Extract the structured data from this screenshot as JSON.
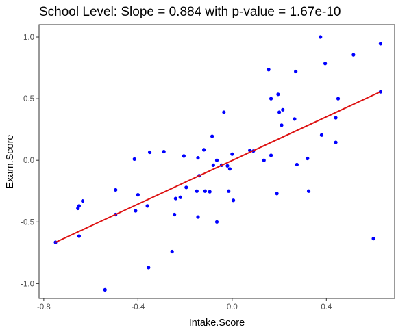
{
  "chart_data": {
    "type": "scatter",
    "title": "School Level:  Slope = 0.884 with p-value = 1.67e-10",
    "xlabel": "Intake.Score",
    "ylabel": "Exam.Score",
    "xlim": [
      -0.82,
      0.69
    ],
    "ylim": [
      -1.12,
      1.1
    ],
    "x_ticks": [
      -0.8,
      -0.4,
      0.0,
      0.4
    ],
    "x_tick_labels": [
      "-0.8",
      "-0.4",
      "0.0",
      "0.4"
    ],
    "y_ticks": [
      -1.0,
      -0.5,
      0.0,
      0.5,
      1.0
    ],
    "y_tick_labels": [
      "-1.0",
      "-0.5",
      "0.0",
      "0.5",
      "1.0"
    ],
    "grid": false,
    "point_color": "#0000ff",
    "line_color": "#dd1111",
    "regression_line": {
      "x": [
        -0.75,
        0.63
      ],
      "y": [
        -0.665,
        0.556
      ]
    },
    "points": [
      [
        -0.75,
        -0.665
      ],
      [
        -0.655,
        -0.39
      ],
      [
        -0.65,
        -0.37
      ],
      [
        -0.65,
        -0.615
      ],
      [
        -0.635,
        -0.33
      ],
      [
        -0.54,
        -1.05
      ],
      [
        -0.495,
        -0.24
      ],
      [
        -0.495,
        -0.44
      ],
      [
        -0.415,
        0.01
      ],
      [
        -0.41,
        -0.41
      ],
      [
        -0.4,
        -0.28
      ],
      [
        -0.36,
        -0.37
      ],
      [
        -0.355,
        -0.87
      ],
      [
        -0.35,
        0.065
      ],
      [
        -0.29,
        0.07
      ],
      [
        -0.255,
        -0.74
      ],
      [
        -0.245,
        -0.44
      ],
      [
        -0.24,
        -0.31
      ],
      [
        -0.22,
        -0.3
      ],
      [
        -0.205,
        0.035
      ],
      [
        -0.195,
        -0.22
      ],
      [
        -0.15,
        -0.25
      ],
      [
        -0.145,
        -0.46
      ],
      [
        -0.14,
        -0.125
      ],
      [
        -0.145,
        0.02
      ],
      [
        -0.12,
        0.085
      ],
      [
        -0.115,
        -0.25
      ],
      [
        -0.095,
        -0.255
      ],
      [
        -0.085,
        0.195
      ],
      [
        -0.08,
        -0.04
      ],
      [
        -0.065,
        0.0
      ],
      [
        -0.065,
        -0.5
      ],
      [
        -0.045,
        -0.04
      ],
      [
        -0.035,
        0.39
      ],
      [
        -0.02,
        -0.045
      ],
      [
        -0.015,
        -0.25
      ],
      [
        -0.01,
        -0.07
      ],
      [
        0.0,
        0.05
      ],
      [
        0.005,
        -0.325
      ],
      [
        0.075,
        0.08
      ],
      [
        0.09,
        0.075
      ],
      [
        0.135,
        0.0
      ],
      [
        0.155,
        0.735
      ],
      [
        0.165,
        0.5
      ],
      [
        0.165,
        0.04
      ],
      [
        0.19,
        -0.27
      ],
      [
        0.195,
        0.535
      ],
      [
        0.2,
        0.39
      ],
      [
        0.21,
        0.285
      ],
      [
        0.215,
        0.41
      ],
      [
        0.265,
        0.335
      ],
      [
        0.27,
        0.72
      ],
      [
        0.275,
        -0.035
      ],
      [
        0.32,
        0.015
      ],
      [
        0.325,
        -0.25
      ],
      [
        0.375,
        1.0
      ],
      [
        0.38,
        0.205
      ],
      [
        0.395,
        0.785
      ],
      [
        0.44,
        0.345
      ],
      [
        0.44,
        0.145
      ],
      [
        0.45,
        0.5
      ],
      [
        0.515,
        0.855
      ],
      [
        0.6,
        -0.635
      ],
      [
        0.63,
        0.945
      ],
      [
        0.63,
        0.555
      ]
    ]
  }
}
